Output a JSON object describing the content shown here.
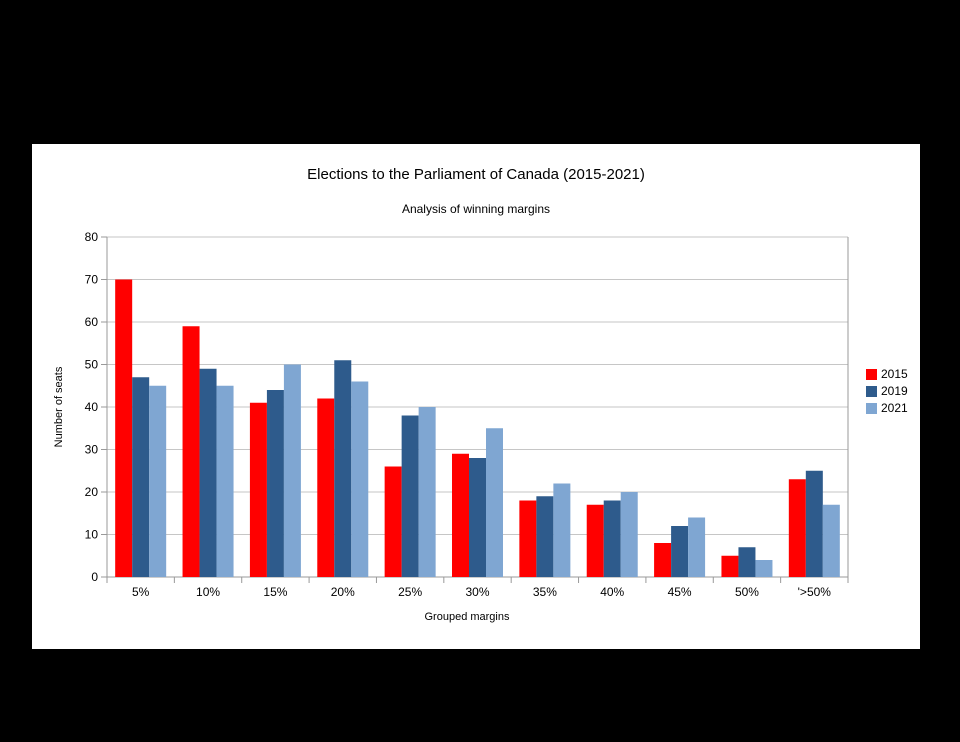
{
  "window": {
    "background_color": "#000000",
    "panel_color": "#ffffff"
  },
  "chart_data": {
    "type": "bar",
    "title": "Elections to the Parliament of Canada (2015-2021)",
    "subtitle": "Analysis of winning margins",
    "xlabel": "Grouped margins",
    "ylabel": "Number of seats",
    "categories": [
      "5%",
      "10%",
      "15%",
      "20%",
      "25%",
      "30%",
      "35%",
      "40%",
      "45%",
      "50%",
      "'>50%"
    ],
    "series": [
      {
        "name": "2015",
        "color": "#ff0000",
        "values": [
          70,
          59,
          41,
          42,
          26,
          29,
          18,
          17,
          8,
          5,
          23
        ]
      },
      {
        "name": "2019",
        "color": "#2e5b8c",
        "values": [
          47,
          49,
          44,
          51,
          38,
          28,
          19,
          18,
          12,
          7,
          25
        ]
      },
      {
        "name": "2021",
        "color": "#7fa6d2",
        "values": [
          45,
          45,
          50,
          46,
          40,
          35,
          22,
          20,
          14,
          4,
          17
        ]
      }
    ],
    "ylim": [
      0,
      80
    ],
    "ytick_step": 10,
    "grid": true,
    "legend_position": "right",
    "grid_color": "#c6c6c6",
    "axis_color": "#999999",
    "text_color": "#000000"
  }
}
